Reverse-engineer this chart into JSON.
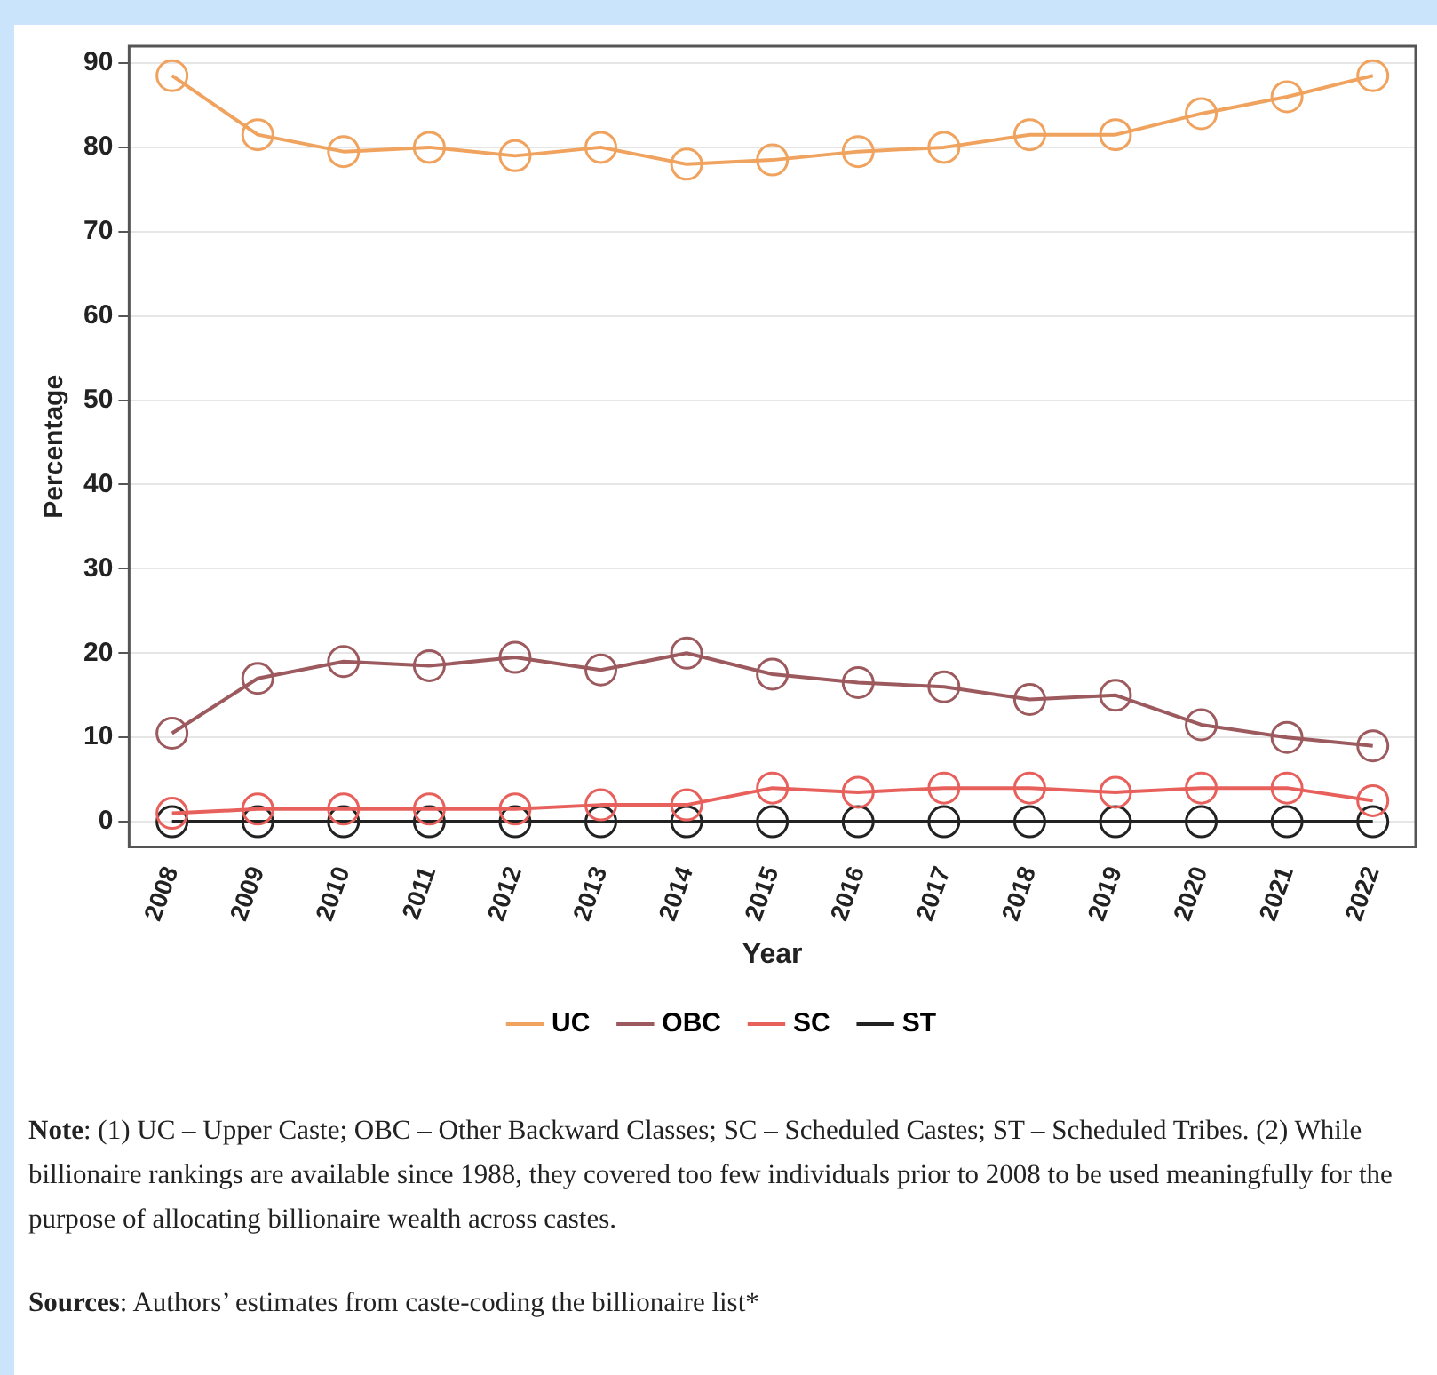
{
  "chart_data": {
    "type": "line",
    "xlabel": "Year",
    "ylabel": "Percentage",
    "categories": [
      "2008",
      "2009",
      "2010",
      "2011",
      "2012",
      "2013",
      "2014",
      "2015",
      "2016",
      "2017",
      "2018",
      "2019",
      "2020",
      "2021",
      "2022"
    ],
    "series": [
      {
        "name": "UC",
        "color": "#f0a35e",
        "values": [
          88.5,
          81.5,
          79.5,
          80,
          79,
          80,
          78,
          78.5,
          79.5,
          80,
          81.5,
          81.5,
          84,
          86,
          88.5
        ]
      },
      {
        "name": "OBC",
        "color": "#9c5a5e",
        "values": [
          10.5,
          17,
          19,
          18.5,
          19.5,
          18,
          20,
          17.5,
          16.5,
          16,
          14.5,
          15,
          11.5,
          10,
          9
        ]
      },
      {
        "name": "SC",
        "color": "#e8605c",
        "values": [
          1,
          1.5,
          1.5,
          1.5,
          1.5,
          2,
          2,
          4,
          3.5,
          4,
          4,
          3.5,
          4,
          4,
          2.5
        ]
      },
      {
        "name": "ST",
        "color": "#222222",
        "values": [
          0,
          0,
          0,
          0,
          0,
          0,
          0,
          0,
          0,
          0,
          0,
          0,
          0,
          0,
          0
        ]
      }
    ],
    "ylim": [
      -3,
      92
    ],
    "yticks": [
      0,
      10,
      20,
      30,
      40,
      50,
      60,
      70,
      80,
      90
    ],
    "grid": "y",
    "legend": "bottom",
    "marker": "circle",
    "line_style": "solid",
    "annotations": [
      "Note: (1) UC – Upper Caste; OBC – Other Backward Classes; SC – Scheduled Castes; ST – Scheduled Tribes. (2) While billionaire rankings are available since 1988, they covered too few individuals prior to 2008 to be used meaningfully for the purpose of allocating billionaire wealth across castes.",
      "Sources: Authors’ estimates from caste-coding the billionaire list*"
    ]
  }
}
